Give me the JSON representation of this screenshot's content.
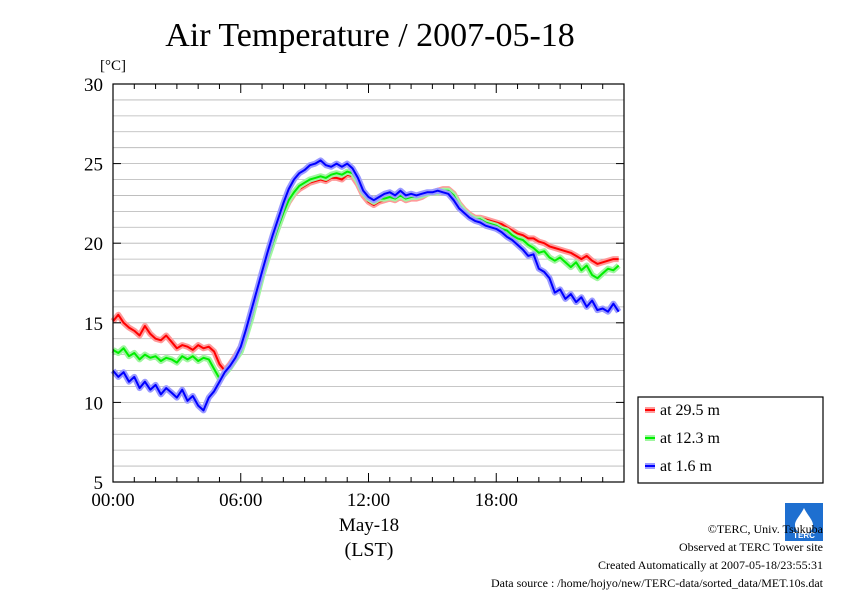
{
  "chart_data": {
    "type": "line",
    "title": "Air Temperature / 2007-05-18",
    "ylabel": "[°C]",
    "xlabel_date": "May-18",
    "xlabel_tz": "(LST)",
    "ylim": [
      5,
      30
    ],
    "xlim": [
      0,
      24
    ],
    "yticks": [
      "5",
      "10",
      "15",
      "20",
      "25",
      "30"
    ],
    "xticks": [
      "00:00",
      "06:00",
      "12:00",
      "18:00"
    ],
    "grid": true,
    "legend_position": "right-bottom",
    "series": [
      {
        "name": "at 29.5 m",
        "color": "#ff0000",
        "halo": "#ff9a9a",
        "points": [
          [
            0,
            15.1
          ],
          [
            0.25,
            15.5
          ],
          [
            0.5,
            15.0
          ],
          [
            0.75,
            14.7
          ],
          [
            1,
            14.5
          ],
          [
            1.25,
            14.2
          ],
          [
            1.5,
            14.8
          ],
          [
            1.75,
            14.3
          ],
          [
            2,
            14.0
          ],
          [
            2.25,
            13.9
          ],
          [
            2.5,
            14.2
          ],
          [
            2.75,
            13.8
          ],
          [
            3,
            13.4
          ],
          [
            3.25,
            13.6
          ],
          [
            3.5,
            13.5
          ],
          [
            3.75,
            13.3
          ],
          [
            4,
            13.6
          ],
          [
            4.25,
            13.4
          ],
          [
            4.5,
            13.5
          ],
          [
            4.75,
            13.2
          ],
          [
            5,
            12.4
          ],
          [
            5.25,
            12.0
          ],
          [
            5.5,
            12.4
          ],
          [
            5.75,
            12.9
          ],
          [
            6,
            13.5
          ],
          [
            6.25,
            14.5
          ],
          [
            6.5,
            15.6
          ],
          [
            6.75,
            16.8
          ],
          [
            7,
            18.0
          ],
          [
            7.25,
            19.1
          ],
          [
            7.5,
            20.1
          ],
          [
            7.75,
            21.0
          ],
          [
            8,
            21.9
          ],
          [
            8.25,
            22.6
          ],
          [
            8.5,
            23.1
          ],
          [
            8.75,
            23.4
          ],
          [
            9,
            23.6
          ],
          [
            9.25,
            23.8
          ],
          [
            9.5,
            23.9
          ],
          [
            9.75,
            24.0
          ],
          [
            10,
            23.9
          ],
          [
            10.25,
            24.1
          ],
          [
            10.5,
            24.1
          ],
          [
            10.75,
            24.0
          ],
          [
            11,
            24.3
          ],
          [
            11.25,
            24.2
          ],
          [
            11.5,
            23.7
          ],
          [
            11.75,
            23.0
          ],
          [
            12,
            22.6
          ],
          [
            12.25,
            22.4
          ],
          [
            12.5,
            22.6
          ],
          [
            12.75,
            22.7
          ],
          [
            13,
            22.8
          ],
          [
            13.25,
            22.7
          ],
          [
            13.5,
            22.9
          ],
          [
            13.75,
            22.7
          ],
          [
            14,
            22.8
          ],
          [
            14.25,
            22.8
          ],
          [
            14.5,
            22.9
          ],
          [
            14.75,
            23.1
          ],
          [
            15,
            23.2
          ],
          [
            15.25,
            23.3
          ],
          [
            15.5,
            23.4
          ],
          [
            15.75,
            23.4
          ],
          [
            16,
            23.1
          ],
          [
            16.25,
            22.5
          ],
          [
            16.5,
            22.1
          ],
          [
            16.75,
            21.8
          ],
          [
            17,
            21.6
          ],
          [
            17.25,
            21.6
          ],
          [
            17.5,
            21.5
          ],
          [
            17.75,
            21.4
          ],
          [
            18,
            21.3
          ],
          [
            18.25,
            21.2
          ],
          [
            18.5,
            21.0
          ],
          [
            18.75,
            20.8
          ],
          [
            19,
            20.6
          ],
          [
            19.25,
            20.5
          ],
          [
            19.5,
            20.3
          ],
          [
            19.75,
            20.3
          ],
          [
            20,
            20.1
          ],
          [
            20.25,
            20.0
          ],
          [
            20.5,
            19.8
          ],
          [
            20.75,
            19.7
          ],
          [
            21,
            19.6
          ],
          [
            21.25,
            19.5
          ],
          [
            21.5,
            19.4
          ],
          [
            21.75,
            19.2
          ],
          [
            22,
            19.0
          ],
          [
            22.25,
            19.2
          ],
          [
            22.5,
            18.9
          ],
          [
            22.75,
            18.7
          ],
          [
            23,
            18.8
          ],
          [
            23.25,
            18.9
          ],
          [
            23.5,
            19.0
          ],
          [
            23.75,
            19.0
          ]
        ]
      },
      {
        "name": "at 12.3 m",
        "color": "#00ee00",
        "halo": "#a0f5a0",
        "points": [
          [
            0,
            13.3
          ],
          [
            0.25,
            13.1
          ],
          [
            0.5,
            13.4
          ],
          [
            0.75,
            12.9
          ],
          [
            1,
            13.1
          ],
          [
            1.25,
            12.7
          ],
          [
            1.5,
            13.0
          ],
          [
            1.75,
            12.8
          ],
          [
            2,
            12.9
          ],
          [
            2.25,
            12.6
          ],
          [
            2.5,
            12.8
          ],
          [
            2.75,
            12.7
          ],
          [
            3,
            12.5
          ],
          [
            3.25,
            12.9
          ],
          [
            3.5,
            12.7
          ],
          [
            3.75,
            12.9
          ],
          [
            4,
            12.6
          ],
          [
            4.25,
            12.8
          ],
          [
            4.5,
            12.7
          ],
          [
            4.75,
            12.1
          ],
          [
            5,
            11.5
          ],
          [
            5.25,
            11.8
          ],
          [
            5.5,
            12.2
          ],
          [
            5.75,
            12.7
          ],
          [
            6,
            13.2
          ],
          [
            6.25,
            14.2
          ],
          [
            6.5,
            15.3
          ],
          [
            6.75,
            16.6
          ],
          [
            7,
            17.9
          ],
          [
            7.25,
            19.0
          ],
          [
            7.5,
            20.0
          ],
          [
            7.75,
            21.0
          ],
          [
            8,
            21.9
          ],
          [
            8.25,
            22.7
          ],
          [
            8.5,
            23.2
          ],
          [
            8.75,
            23.6
          ],
          [
            9,
            23.8
          ],
          [
            9.25,
            24.0
          ],
          [
            9.5,
            24.1
          ],
          [
            9.75,
            24.2
          ],
          [
            10,
            24.1
          ],
          [
            10.25,
            24.3
          ],
          [
            10.5,
            24.4
          ],
          [
            10.75,
            24.3
          ],
          [
            11,
            24.5
          ],
          [
            11.25,
            24.4
          ],
          [
            11.5,
            23.9
          ],
          [
            11.75,
            23.2
          ],
          [
            12,
            22.8
          ],
          [
            12.25,
            22.6
          ],
          [
            12.5,
            22.8
          ],
          [
            12.75,
            22.8
          ],
          [
            13,
            22.9
          ],
          [
            13.25,
            22.8
          ],
          [
            13.5,
            23.0
          ],
          [
            13.75,
            22.8
          ],
          [
            14,
            22.9
          ],
          [
            14.25,
            22.9
          ],
          [
            14.5,
            23.0
          ],
          [
            14.75,
            23.1
          ],
          [
            15,
            23.2
          ],
          [
            15.25,
            23.2
          ],
          [
            15.5,
            23.3
          ],
          [
            15.75,
            23.3
          ],
          [
            16,
            23.0
          ],
          [
            16.25,
            22.4
          ],
          [
            16.5,
            22.0
          ],
          [
            16.75,
            21.7
          ],
          [
            17,
            21.5
          ],
          [
            17.25,
            21.5
          ],
          [
            17.5,
            21.3
          ],
          [
            17.75,
            21.2
          ],
          [
            18,
            21.1
          ],
          [
            18.25,
            20.9
          ],
          [
            18.5,
            20.8
          ],
          [
            18.75,
            20.5
          ],
          [
            19,
            20.3
          ],
          [
            19.25,
            20.2
          ],
          [
            19.5,
            19.9
          ],
          [
            19.75,
            19.7
          ],
          [
            20,
            19.4
          ],
          [
            20.25,
            19.5
          ],
          [
            20.5,
            19.1
          ],
          [
            20.75,
            18.9
          ],
          [
            21,
            19.1
          ],
          [
            21.25,
            18.8
          ],
          [
            21.5,
            18.5
          ],
          [
            21.75,
            18.8
          ],
          [
            22,
            18.3
          ],
          [
            22.25,
            18.6
          ],
          [
            22.5,
            18.0
          ],
          [
            22.75,
            17.8
          ],
          [
            23,
            18.1
          ],
          [
            23.25,
            18.4
          ],
          [
            23.5,
            18.3
          ],
          [
            23.75,
            18.6
          ]
        ]
      },
      {
        "name": "at 1.6 m",
        "color": "#0000ff",
        "halo": "#9a9aff",
        "points": [
          [
            0,
            12.0
          ],
          [
            0.25,
            11.6
          ],
          [
            0.5,
            11.9
          ],
          [
            0.75,
            11.3
          ],
          [
            1,
            11.6
          ],
          [
            1.25,
            10.9
          ],
          [
            1.5,
            11.3
          ],
          [
            1.75,
            10.8
          ],
          [
            2,
            11.1
          ],
          [
            2.25,
            10.5
          ],
          [
            2.5,
            10.9
          ],
          [
            2.75,
            10.6
          ],
          [
            3,
            10.3
          ],
          [
            3.25,
            10.8
          ],
          [
            3.5,
            10.1
          ],
          [
            3.75,
            10.4
          ],
          [
            4,
            9.8
          ],
          [
            4.25,
            9.5
          ],
          [
            4.5,
            10.3
          ],
          [
            4.75,
            10.7
          ],
          [
            5,
            11.3
          ],
          [
            5.25,
            11.9
          ],
          [
            5.5,
            12.3
          ],
          [
            5.75,
            12.8
          ],
          [
            6,
            13.5
          ],
          [
            6.25,
            14.6
          ],
          [
            6.5,
            15.8
          ],
          [
            6.75,
            17.0
          ],
          [
            7,
            18.2
          ],
          [
            7.25,
            19.4
          ],
          [
            7.5,
            20.5
          ],
          [
            7.75,
            21.5
          ],
          [
            8,
            22.5
          ],
          [
            8.25,
            23.4
          ],
          [
            8.5,
            24.0
          ],
          [
            8.75,
            24.4
          ],
          [
            9,
            24.6
          ],
          [
            9.25,
            24.9
          ],
          [
            9.5,
            25.0
          ],
          [
            9.75,
            25.2
          ],
          [
            10,
            24.9
          ],
          [
            10.25,
            24.8
          ],
          [
            10.5,
            25.0
          ],
          [
            10.75,
            24.8
          ],
          [
            11,
            25.0
          ],
          [
            11.25,
            24.7
          ],
          [
            11.5,
            24.1
          ],
          [
            11.75,
            23.3
          ],
          [
            12,
            22.9
          ],
          [
            12.25,
            22.7
          ],
          [
            12.5,
            22.9
          ],
          [
            12.75,
            23.1
          ],
          [
            13,
            23.2
          ],
          [
            13.25,
            23.0
          ],
          [
            13.5,
            23.3
          ],
          [
            13.75,
            23.0
          ],
          [
            14,
            23.1
          ],
          [
            14.25,
            23.0
          ],
          [
            14.5,
            23.1
          ],
          [
            14.75,
            23.2
          ],
          [
            15,
            23.2
          ],
          [
            15.25,
            23.3
          ],
          [
            15.5,
            23.2
          ],
          [
            15.75,
            23.1
          ],
          [
            16,
            22.7
          ],
          [
            16.25,
            22.2
          ],
          [
            16.5,
            21.9
          ],
          [
            16.75,
            21.6
          ],
          [
            17,
            21.4
          ],
          [
            17.25,
            21.3
          ],
          [
            17.5,
            21.1
          ],
          [
            17.75,
            21.0
          ],
          [
            18,
            20.9
          ],
          [
            18.25,
            20.7
          ],
          [
            18.5,
            20.4
          ],
          [
            18.75,
            20.2
          ],
          [
            19,
            19.9
          ],
          [
            19.25,
            19.6
          ],
          [
            19.5,
            19.2
          ],
          [
            19.75,
            19.3
          ],
          [
            20,
            18.4
          ],
          [
            20.25,
            18.2
          ],
          [
            20.5,
            17.8
          ],
          [
            20.75,
            16.9
          ],
          [
            21,
            17.1
          ],
          [
            21.25,
            16.5
          ],
          [
            21.5,
            16.8
          ],
          [
            21.75,
            16.3
          ],
          [
            22,
            16.6
          ],
          [
            22.25,
            16.0
          ],
          [
            22.5,
            16.4
          ],
          [
            22.75,
            15.8
          ],
          [
            23,
            15.9
          ],
          [
            23.25,
            15.7
          ],
          [
            23.5,
            16.2
          ],
          [
            23.75,
            15.7
          ]
        ]
      }
    ]
  },
  "footer": {
    "line1": "©TERC, Univ. Tsukuba",
    "line2": "Observed at TERC Tower site",
    "line3": "Created Automatically at 2007-05-18/23:55:31",
    "line4": "Data source : /home/hojyo/new/TERC-data/sorted_data/MET.10s.dat"
  },
  "logo": {
    "text": "TERC"
  }
}
